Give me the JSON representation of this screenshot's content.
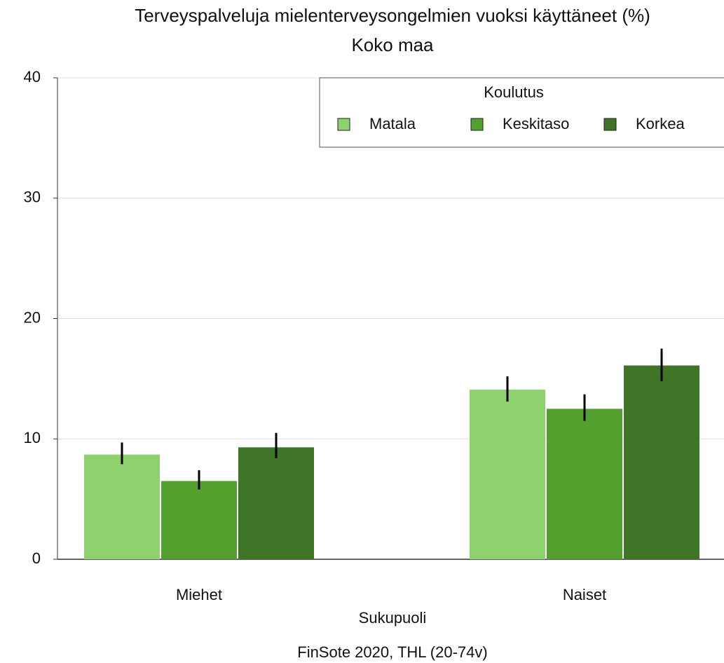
{
  "chart_data": {
    "type": "bar",
    "title": "Terveyspalveluja mielenterveysongelmien vuoksi käyttäneet (%)",
    "subtitle": "Koko maa",
    "x_label": "Sukupuoli",
    "caption": "FinSote 2020, THL (20-74v)",
    "legend_title": "Koulutus",
    "legend_position": "top-right",
    "categories": [
      "Miehet",
      "Naiset"
    ],
    "series": [
      {
        "name": "Matala",
        "color": "#8fd16f",
        "values": [
          8.7,
          14.1
        ],
        "lower": [
          7.9,
          13.1
        ],
        "upper": [
          9.7,
          15.2
        ]
      },
      {
        "name": "Keskitaso",
        "color": "#53a02f",
        "values": [
          6.5,
          12.5
        ],
        "lower": [
          5.8,
          11.5
        ],
        "upper": [
          7.4,
          13.7
        ]
      },
      {
        "name": "Korkea",
        "color": "#3e7526",
        "values": [
          9.3,
          16.1
        ],
        "lower": [
          8.4,
          14.8
        ],
        "upper": [
          10.5,
          17.5
        ]
      }
    ],
    "ylim": [
      0,
      40
    ],
    "yticks": [
      0,
      10,
      20,
      30,
      40
    ],
    "grid": true
  }
}
